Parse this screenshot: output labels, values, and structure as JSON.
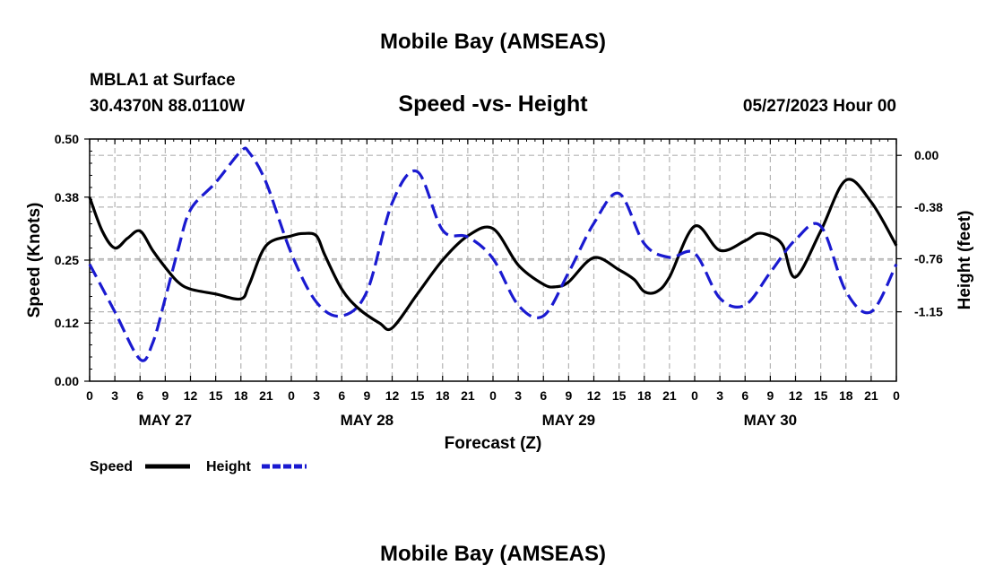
{
  "page": {
    "title": "Mobile Bay (AMSEAS)",
    "station": "MBLA1 at Surface",
    "coords": "30.4370N  88.0110W",
    "subtitle": "Speed -vs- Height",
    "run": "05/27/2023 Hour 00",
    "footer_title": "Mobile Bay (AMSEAS)"
  },
  "colors": {
    "speed": "#000000",
    "height": "#1a1ad0",
    "grid": "#b4b4b4"
  },
  "chart_data": {
    "type": "line",
    "title": "Speed -vs- Height",
    "xlabel": "Forecast (Z)",
    "ylabel": "Speed (Knots)",
    "y2label": "Height (feet)",
    "xlim": [
      0,
      96
    ],
    "ylim": [
      0,
      0.5
    ],
    "y2lim": [
      -1.66,
      0.12
    ],
    "yticks": [
      "0.00",
      "0.12",
      "0.25",
      "0.38",
      "0.50"
    ],
    "y2ticks": [
      "0.00",
      "-0.38",
      "-0.76",
      "-1.15"
    ],
    "xtick_labels": [
      "0",
      "3",
      "6",
      "9",
      "12",
      "15",
      "18",
      "21",
      "0",
      "3",
      "6",
      "9",
      "12",
      "15",
      "18",
      "21",
      "0",
      "3",
      "6",
      "9",
      "12",
      "15",
      "18",
      "21",
      "0",
      "3",
      "6",
      "9",
      "12",
      "15",
      "18",
      "21",
      "0"
    ],
    "date_labels": [
      {
        "label": "MAY 27",
        "hour": 9
      },
      {
        "label": "MAY 28",
        "hour": 33
      },
      {
        "label": "MAY 29",
        "hour": 57
      },
      {
        "label": "MAY 30",
        "hour": 81
      }
    ],
    "series": [
      {
        "name": "Speed",
        "axis": "left",
        "style": "solid",
        "x": [
          0,
          1.5,
          3,
          4.5,
          6,
          7.5,
          9,
          10.5,
          12,
          15,
          18,
          19,
          21,
          24,
          25.5,
          27,
          28,
          30,
          32,
          34.5,
          36,
          39,
          42,
          45,
          48,
          51,
          54,
          55.5,
          57,
          60,
          63,
          64.8,
          66,
          67.5,
          69,
          72,
          75,
          78,
          79.5,
          81,
          82.5,
          84,
          87,
          90,
          93,
          96
        ],
        "values": [
          0.38,
          0.31,
          0.275,
          0.295,
          0.31,
          0.27,
          0.235,
          0.205,
          0.19,
          0.18,
          0.17,
          0.2,
          0.28,
          0.3,
          0.305,
          0.3,
          0.26,
          0.19,
          0.15,
          0.12,
          0.11,
          0.18,
          0.25,
          0.3,
          0.315,
          0.24,
          0.2,
          0.195,
          0.205,
          0.255,
          0.23,
          0.21,
          0.185,
          0.185,
          0.215,
          0.32,
          0.27,
          0.29,
          0.305,
          0.3,
          0.28,
          0.215,
          0.31,
          0.415,
          0.37,
          0.28
        ]
      },
      {
        "name": "Height",
        "axis": "right",
        "style": "dashed",
        "x": [
          0,
          3,
          6,
          7.5,
          9,
          10.5,
          12,
          15,
          18,
          19,
          21,
          24,
          27,
          30,
          33,
          36,
          39,
          42,
          45,
          48,
          51,
          54,
          57,
          60,
          63,
          66,
          69,
          72,
          75,
          78,
          81,
          84,
          87,
          90,
          93,
          96
        ],
        "values": [
          -0.8,
          -1.15,
          -1.5,
          -1.38,
          -1.05,
          -0.7,
          -0.4,
          -0.2,
          0.03,
          0.02,
          -0.2,
          -0.72,
          -1.08,
          -1.18,
          -1.0,
          -0.35,
          -0.12,
          -0.55,
          -0.6,
          -0.76,
          -1.1,
          -1.18,
          -0.86,
          -0.5,
          -0.28,
          -0.65,
          -0.75,
          -0.72,
          -1.05,
          -1.1,
          -0.86,
          -0.62,
          -0.52,
          -1.0,
          -1.15,
          -0.8
        ]
      }
    ],
    "legend": [
      {
        "label": "Speed",
        "style": "solid"
      },
      {
        "label": "Height",
        "style": "dashed"
      }
    ],
    "grid": true,
    "legend_position": "bottom-left"
  }
}
